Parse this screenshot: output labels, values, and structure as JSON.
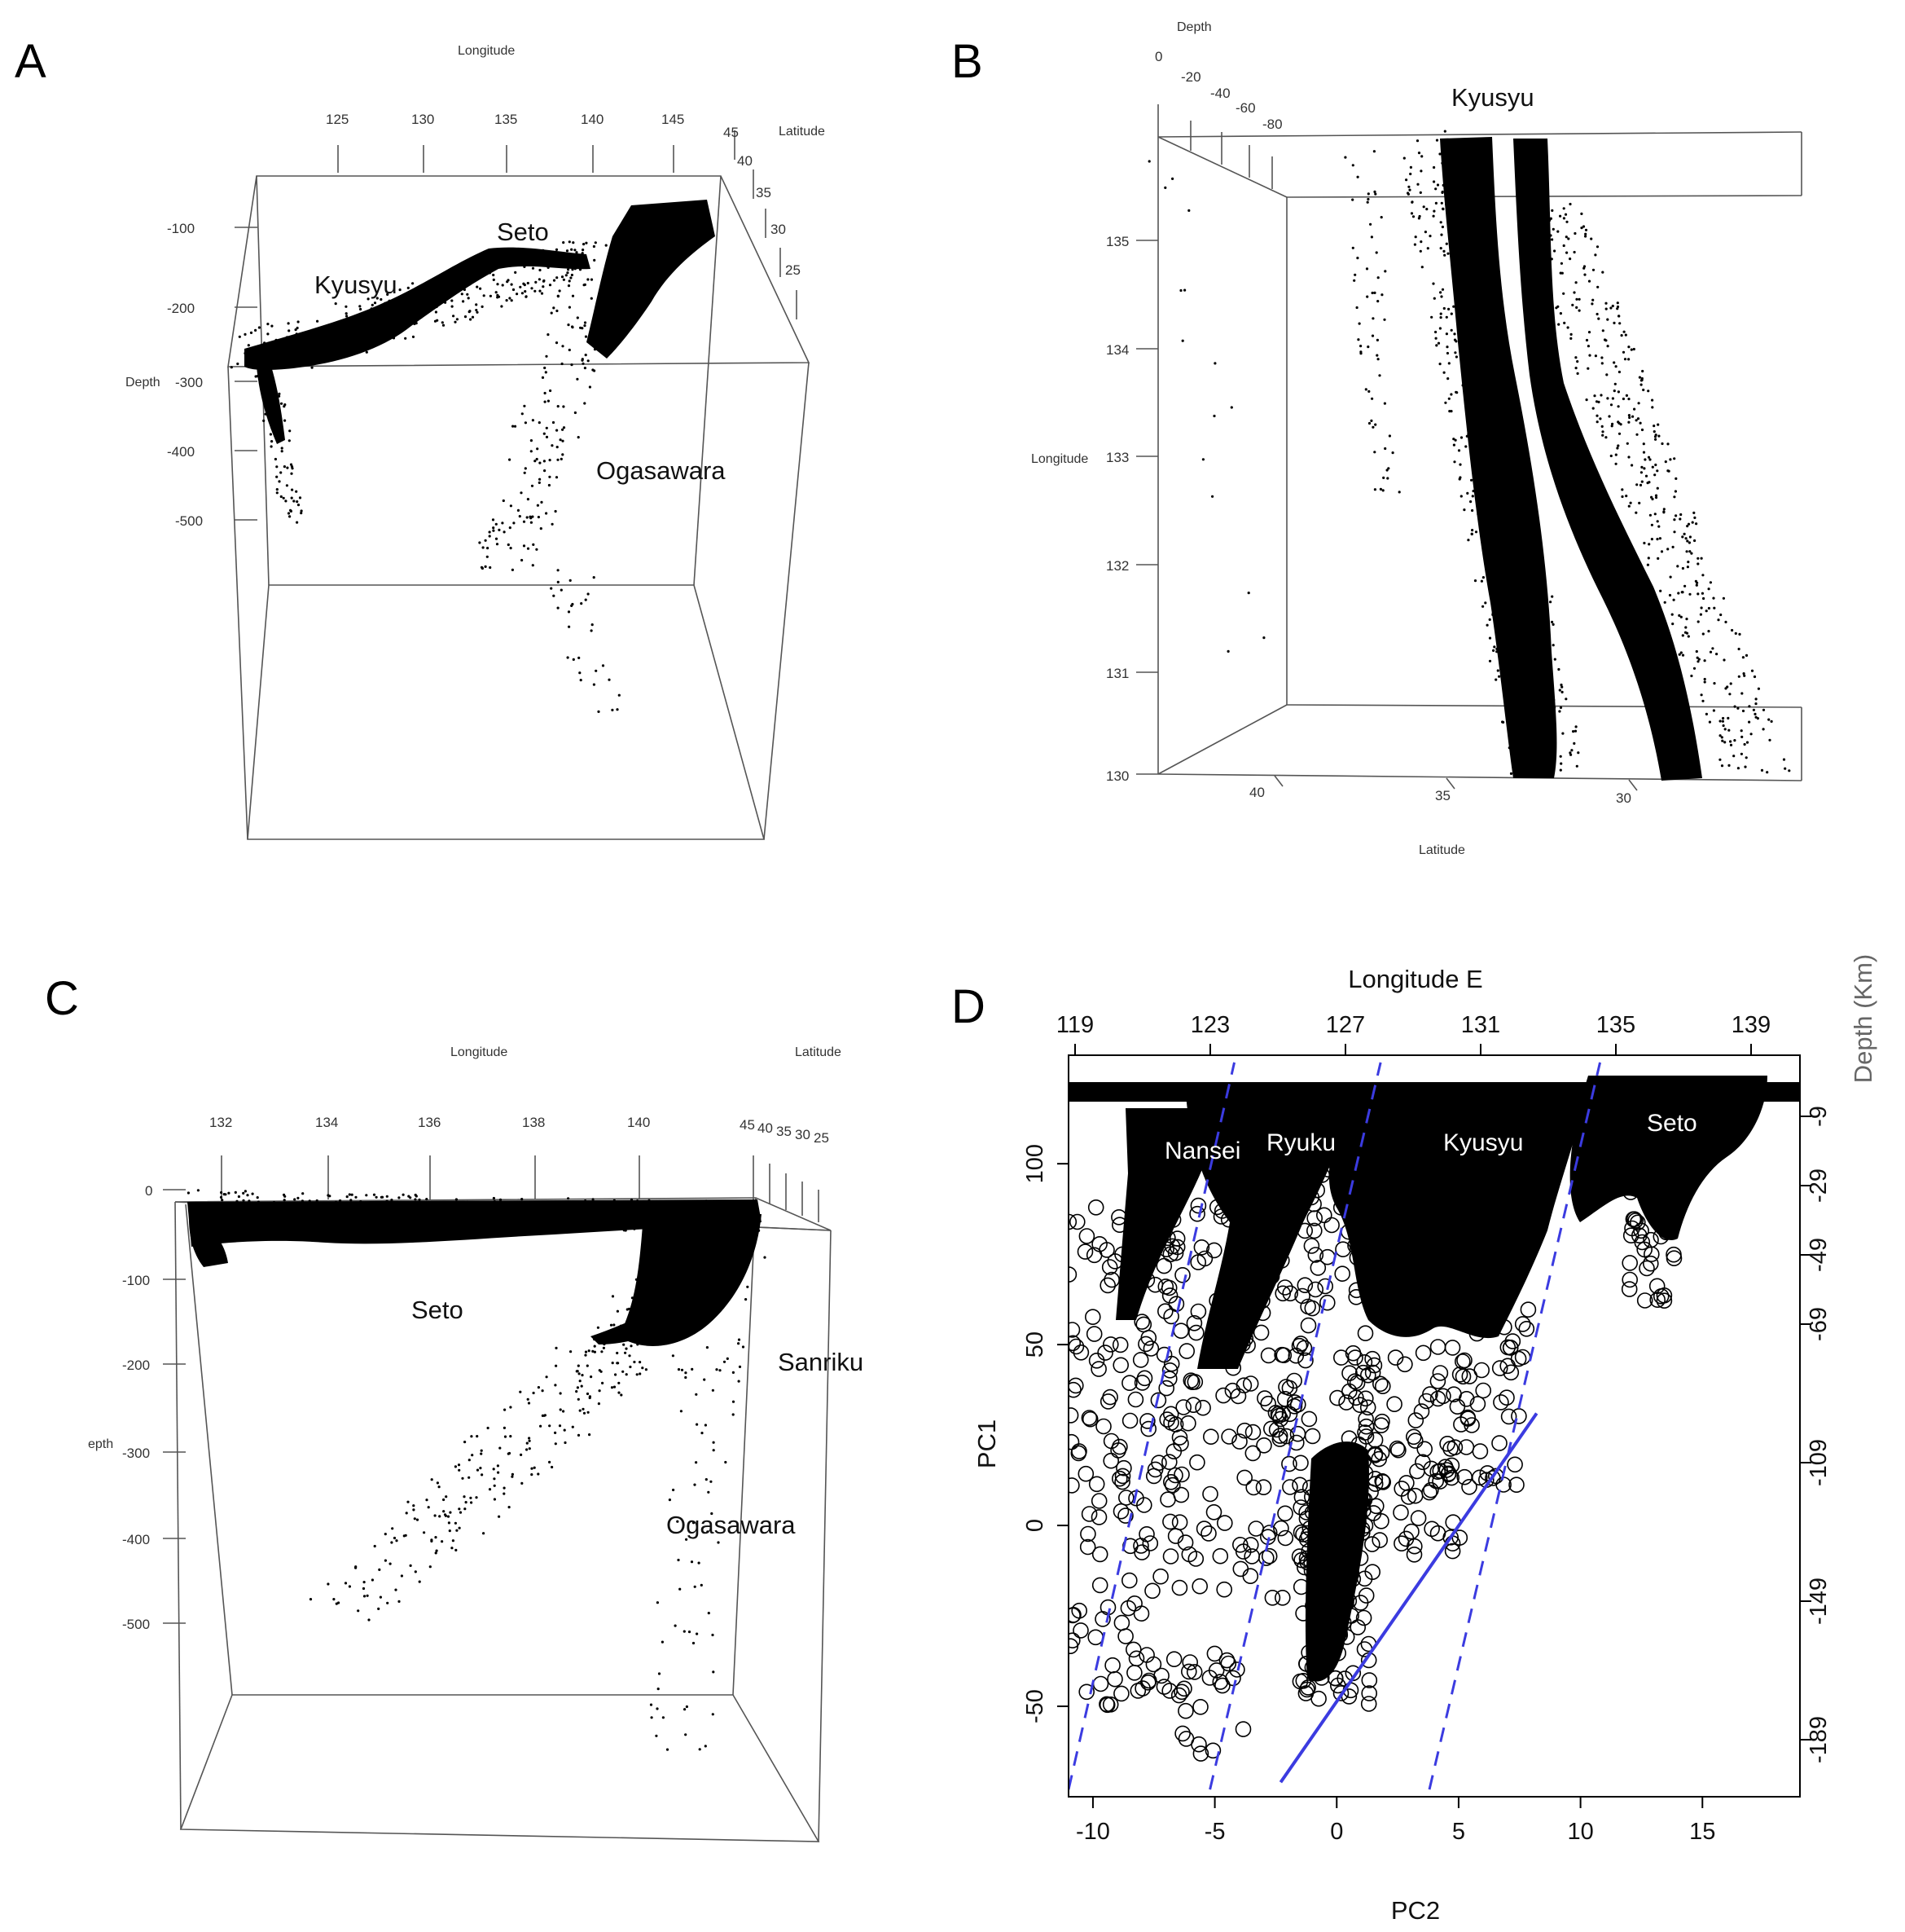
{
  "chart_data": [
    {
      "panel": "A",
      "type": "scatter",
      "x_title": "Longitude",
      "y_title": "Latitude",
      "z_title": "Depth",
      "x_ticks": [
        "125",
        "130",
        "135",
        "140",
        "145"
      ],
      "y_ticks": [
        "45",
        "40",
        "35",
        "30",
        "25"
      ],
      "z_ticks": [
        "-100",
        "-200",
        "-300",
        "-400",
        "-500"
      ],
      "regions": [
        "Kyusyu",
        "Seto",
        "Ogasawara"
      ]
    },
    {
      "panel": "B",
      "type": "scatter",
      "depth_title": "Depth",
      "longitude_title": "Longitude",
      "latitude_title": "Latitude",
      "depth_ticks": [
        "0",
        "-20",
        "-40",
        "-60",
        "-80"
      ],
      "longitude_ticks": [
        "135",
        "134",
        "133",
        "132",
        "131",
        "130"
      ],
      "latitude_ticks": [
        "40",
        "35",
        "30"
      ],
      "regions": [
        "Kyusyu"
      ]
    },
    {
      "panel": "C",
      "type": "scatter",
      "x_title": "Longitude",
      "y_title": "Latitude",
      "z_title": "epth",
      "x_ticks": [
        "132",
        "134",
        "136",
        "138",
        "140"
      ],
      "y_ticks": [
        "45",
        "40",
        "35",
        "30",
        "25"
      ],
      "z_ticks": [
        "0",
        "-100",
        "-200",
        "-300",
        "-400",
        "-500"
      ],
      "regions": [
        "Seto",
        "Sanriku",
        "Ogasawara"
      ]
    },
    {
      "panel": "D",
      "type": "scatter",
      "xlabel": "PC2",
      "ylabel": "PC1",
      "top_axis_label": "Longitude  E",
      "right_axis_label": "Depth (Km)",
      "xlim": [
        -11,
        19
      ],
      "ylim": [
        -75,
        130
      ],
      "x_ticks": [
        -10,
        -5,
        0,
        5,
        10,
        15
      ],
      "y_ticks": [
        -50,
        0,
        50,
        100
      ],
      "top_ticks": [
        119,
        123,
        127,
        131,
        135,
        139
      ],
      "right_ticks": [
        -9,
        -29,
        -49,
        -69,
        -109,
        -149,
        -189
      ],
      "regions": [
        "Nansei",
        "Ryuku",
        "Kyusyu",
        "Seto"
      ],
      "dashed_lines": [
        {
          "from": [
            -11,
            -73
          ],
          "to": [
            -4.2,
            128
          ]
        },
        {
          "from": [
            -5.2,
            -73
          ],
          "to": [
            1.8,
            128
          ]
        },
        {
          "from": [
            3.8,
            -73
          ],
          "to": [
            10.8,
            128
          ]
        }
      ],
      "solid_line": {
        "from": [
          -2.3,
          -71
        ],
        "to": [
          8.2,
          31
        ]
      }
    }
  ]
}
